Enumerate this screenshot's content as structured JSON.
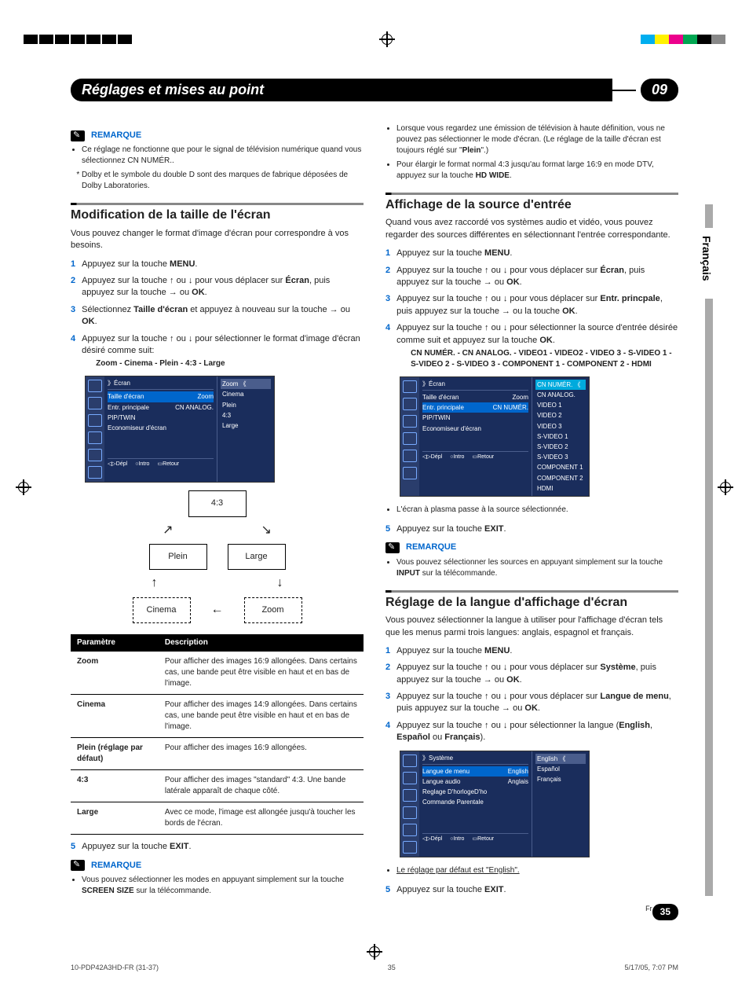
{
  "registration_colors": [
    "#00aeef",
    "#fff200",
    "#ec008c",
    "#00a651",
    "#000000",
    "#888888"
  ],
  "chapter": {
    "title": "Réglages et mises au point",
    "number": "09"
  },
  "side_tab": "Français",
  "remarque_label": "REMARQUE",
  "left": {
    "rem1_b1": "Ce réglage ne fonctionne que pour le signal de télévision numérique quand vous sélectionnez CN NUMÉR..",
    "rem1_b2": "Dolby et le symbole du double D sont des marques de fabrique déposées de Dolby Laboratories.",
    "sec1_title": "Modification de la taille de l'écran",
    "sec1_intro": "Vous pouvez changer le format d'image d'écran pour correspondre à vos besoins.",
    "s1": "Appuyez sur la touche ",
    "s1b": "MENU",
    "s1e": ".",
    "s2a": "Appuyez sur la touche ↑ ou ↓ pour vous déplacer sur ",
    "s2b": "Écran",
    "s2c": ", puis appuyez sur la touche → ou ",
    "s2d": "OK",
    "s2e": ".",
    "s3a": "Sélectionnez ",
    "s3b": "Taille d'écran",
    "s3c": " et appuyez à nouveau sur la touche → ou ",
    "s3d": "OK",
    "s3e": ".",
    "s4": "Appuyez sur la touche ↑ ou ↓ pour sélectionner le format d'image d'écran désiré comme suit:",
    "s4_sub": "Zoom - Cinema - Plein - 4:3 - Large",
    "osd1": {
      "header": "Écran",
      "rows": [
        {
          "l": "Taille d'écran",
          "r": "Zoom",
          "sel": true
        },
        {
          "l": "Entr. principale",
          "r": "CN ANALOG."
        },
        {
          "l": "PIP/TWIN",
          "r": ""
        },
        {
          "l": "Economiseur d'écran",
          "r": ""
        }
      ],
      "opts": [
        "Zoom",
        "Cinema",
        "Plein",
        "4:3",
        "Large"
      ],
      "foot": [
        "Dépl",
        "Intro",
        "Retour"
      ]
    },
    "cycle": {
      "top": "4:3",
      "midL": "Plein",
      "midR": "Large",
      "botL": "Cinema",
      "botR": "Zoom"
    },
    "table": {
      "h1": "Paramètre",
      "h2": "Description",
      "rows": [
        {
          "p": "Zoom",
          "d": "Pour afficher des images 16:9 allongées. Dans certains cas, une bande peut être visible en haut et en bas de l'image."
        },
        {
          "p": "Cinema",
          "d": "Pour afficher des images 14:9 allongées. Dans certains cas, une bande peut être visible en haut et en bas de l'image."
        },
        {
          "p": "Plein (réglage par défaut)",
          "d": "Pour afficher des images 16:9 allongées."
        },
        {
          "p": "4:3",
          "d": "Pour afficher des images \"standard\" 4:3. Une bande latérale apparaît de chaque côté."
        },
        {
          "p": "Large",
          "d": "Avec ce mode, l'image est allongée jusqu'à toucher les bords de l'écran."
        }
      ]
    },
    "s5a": "Appuyez sur la touche ",
    "s5b": "EXIT",
    "s5c": ".",
    "rem2_a": "Vous pouvez sélectionner les modes en appuyant simplement sur la touche ",
    "rem2_b": "SCREEN SIZE",
    "rem2_c": " sur la télécommande."
  },
  "right": {
    "top_b1a": "Lorsque vous regardez une émission de télévision à haute définition, vous ne pouvez pas sélectionner le mode d'écran. (Le réglage de la taille d'écran est toujours réglé sur \"",
    "top_b1b": "Plein",
    "top_b1c": "\".)",
    "top_b2a": "Pour élargir le format normal 4:3 jusqu'au format large 16:9 en mode DTV, appuyez sur la touche ",
    "top_b2b": "HD WIDE",
    "top_b2c": ".",
    "sec2_title": "Affichage de la source d'entrée",
    "sec2_intro": "Quand vous avez raccordé vos systèmes audio et vidéo, vous pouvez regarder des sources différentes en sélectionnant l'entrée correspondante.",
    "r1a": "Appuyez sur la touche ",
    "r1b": "MENU",
    "r1c": ".",
    "r2a": "Appuyez sur la touche ↑ ou ↓ pour vous déplacer sur ",
    "r2b": "Écran",
    "r2c": ", puis appuyez sur la touche → ou ",
    "r2d": "OK",
    "r2e": ".",
    "r3a": "Appuyez sur la touche ↑ ou ↓ pour vous déplacer sur ",
    "r3b": "Entr. princpale",
    "r3c": ", puis appuyez sur la touche → ou la touche ",
    "r3d": "OK",
    "r3e": ".",
    "r4a": "Appuyez sur la touche ↑ ou ↓ pour sélectionner la source d'entrée désirée comme suit et appuyez sur la touche ",
    "r4b": "OK",
    "r4c": ".",
    "r4_sub": "CN NUMÉR. - CN ANALOG. - VIDEO1 - VIDEO2 - VIDEO 3 - S-VIDEO 1 - S-VIDEO 2 - S-VIDEO 3 - COMPONENT 1 - COMPONENT 2 - HDMI",
    "osd2": {
      "header": "Écran",
      "rows": [
        {
          "l": "Taille d'écran",
          "r": "Zoom"
        },
        {
          "l": "Entr. principale",
          "r": "CN NUMÉR.",
          "sel": true
        },
        {
          "l": "PIP/TWIN",
          "r": ""
        },
        {
          "l": "Economiseur d'écran",
          "r": ""
        }
      ],
      "opts": [
        "CN NUMÉR.",
        "CN ANALOG.",
        "VIDEO 1",
        "VIDEO 2",
        "VIDEO 3",
        "S-VIDEO 1",
        "S-VIDEO 2",
        "S-VIDEO 3",
        "COMPONENT 1",
        "COMPONENT 2",
        "HDMI"
      ],
      "foot": [
        "Dépl",
        "Intro",
        "Retour"
      ]
    },
    "post_b1": "L'écran à plasma passe à la source sélectionnée.",
    "r5a": "Appuyez sur la touche ",
    "r5b": "EXIT",
    "r5c": ".",
    "rem3_a": "Vous pouvez sélectionner les sources en appuyant simplement sur la touche ",
    "rem3_b": "INPUT",
    "rem3_c": " sur la télécommande.",
    "sec3_title": "Réglage de la langue d'affichage d'écran",
    "sec3_intro": "Vous pouvez sélectionner la langue à utiliser pour l'affichage d'écran tels que les menus parmi trois langues: anglais, espagnol et français.",
    "q1a": "Appuyez sur la touche ",
    "q1b": "MENU",
    "q1c": ".",
    "q2a": "Appuyez sur la touche ↑ ou ↓ pour vous déplacer sur ",
    "q2b": "Système",
    "q2c": ", puis appuyez sur la touche → ou ",
    "q2d": "OK",
    "q2e": ".",
    "q3a": "Appuyez sur la touche ↑ ou ↓ pour vous déplacer sur ",
    "q3b": "Langue de menu",
    "q3c": ", puis appuyez sur la touche → ou ",
    "q3d": "OK",
    "q3e": ".",
    "q4a": "Appuyez sur la touche ↑ ou ↓ pour sélectionner la langue (",
    "q4b": "English",
    "q4c": ", ",
    "q4d": "Español",
    "q4e": " ou ",
    "q4f": "Français",
    "q4g": ").",
    "osd3": {
      "header": "Système",
      "rows": [
        {
          "l": "Langue de menu",
          "r": "English",
          "sel": true
        },
        {
          "l": "Langue audio",
          "r": "Anglais"
        },
        {
          "l": "Reglage D'horlogeD'ho",
          "r": ""
        },
        {
          "l": "Commande Parentale",
          "r": ""
        }
      ],
      "opts": [
        "English",
        "Español",
        "Français"
      ],
      "foot": [
        "Dépl",
        "Intro",
        "Retour"
      ]
    },
    "post_q": "Le réglage par défaut est \"English\".",
    "q5a": "Appuyez sur la touche ",
    "q5b": "EXIT",
    "q5c": "."
  },
  "page_num": "35",
  "page_lang": "Fr",
  "print_foot": {
    "l": "10-PDP42A3HD-FR (31-37)",
    "c": "35",
    "r": "5/17/05, 7:07 PM"
  }
}
